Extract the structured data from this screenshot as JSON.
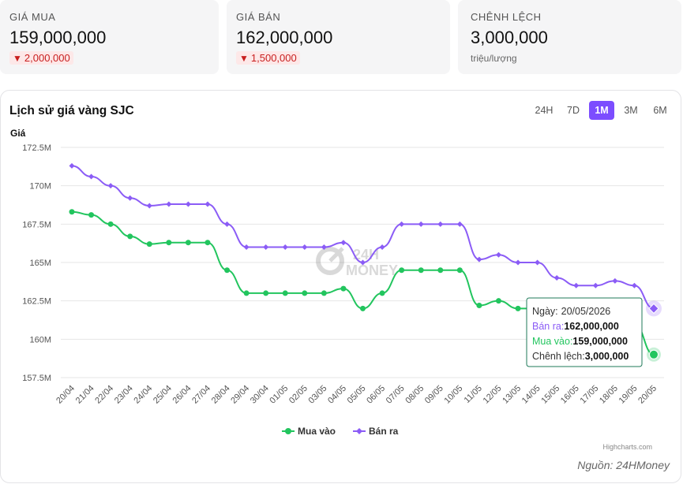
{
  "summary": {
    "buy": {
      "label": "GIÁ MUA",
      "value": "159,000,000",
      "change_icon": "triangle-down-icon",
      "change": "2,000,000"
    },
    "sell": {
      "label": "GIÁ BÁN",
      "value": "162,000,000",
      "change_icon": "triangle-down-icon",
      "change": "1,500,000"
    },
    "spread": {
      "label": "CHÊNH LỆCH",
      "value": "3,000,000",
      "unit": "triệu/lượng"
    }
  },
  "panel": {
    "title": "Lịch sử giá vàng SJC",
    "ranges": [
      "24H",
      "7D",
      "1M",
      "3M",
      "6M"
    ],
    "active_range": "1M",
    "watermark_top": "24H",
    "watermark_bottom": "MONEY",
    "credits": "Highcharts.com",
    "source": "Nguồn: 24HMoney"
  },
  "tooltip": {
    "date_label": "Ngày:",
    "date": "20/05/2026",
    "sell_label": "Bán ra:",
    "sell": "162,000,000",
    "buy_label": "Mua vào:",
    "buy": "159,000,000",
    "diff_label": "Chênh lệch:",
    "diff": "3,000,000"
  },
  "chart_data": {
    "type": "line",
    "title": "Lịch sử giá vàng SJC",
    "ylabel": "Giá",
    "xlabel": "",
    "y_ticks": [
      "157.5M",
      "160M",
      "162.5M",
      "165M",
      "167.5M",
      "170M",
      "172.5M"
    ],
    "ylim": [
      157.5,
      172.5
    ],
    "y_unit": "M",
    "grid": true,
    "legend_position": "bottom-center",
    "categories": [
      "20/04",
      "21/04",
      "22/04",
      "23/04",
      "24/04",
      "25/04",
      "26/04",
      "27/04",
      "28/04",
      "29/04",
      "30/04",
      "01/05",
      "02/05",
      "03/05",
      "04/05",
      "05/05",
      "06/05",
      "07/05",
      "08/05",
      "09/05",
      "10/05",
      "11/05",
      "12/05",
      "13/05",
      "14/05",
      "15/05",
      "16/05",
      "17/05",
      "18/05",
      "19/05",
      "20/05"
    ],
    "series": [
      {
        "name": "Mua vào",
        "color": "#22c55e",
        "values": [
          168.3,
          168.1,
          167.5,
          166.7,
          166.2,
          166.3,
          166.3,
          166.3,
          164.5,
          163.0,
          163.0,
          163.0,
          163.0,
          163.0,
          163.3,
          162.0,
          163.0,
          164.5,
          164.5,
          164.5,
          164.5,
          162.2,
          162.5,
          162.0,
          162.0,
          161.7,
          161.5,
          161.3,
          161.5,
          161.0,
          159.0
        ]
      },
      {
        "name": "Bán ra",
        "color": "#8b5cf6",
        "values": [
          171.3,
          170.6,
          170.0,
          169.2,
          168.7,
          168.8,
          168.8,
          168.8,
          167.5,
          166.0,
          166.0,
          166.0,
          166.0,
          166.0,
          166.3,
          165.0,
          166.0,
          167.5,
          167.5,
          167.5,
          167.5,
          165.2,
          165.5,
          165.0,
          165.0,
          164.0,
          163.5,
          163.5,
          163.8,
          163.5,
          162.0
        ]
      }
    ]
  }
}
